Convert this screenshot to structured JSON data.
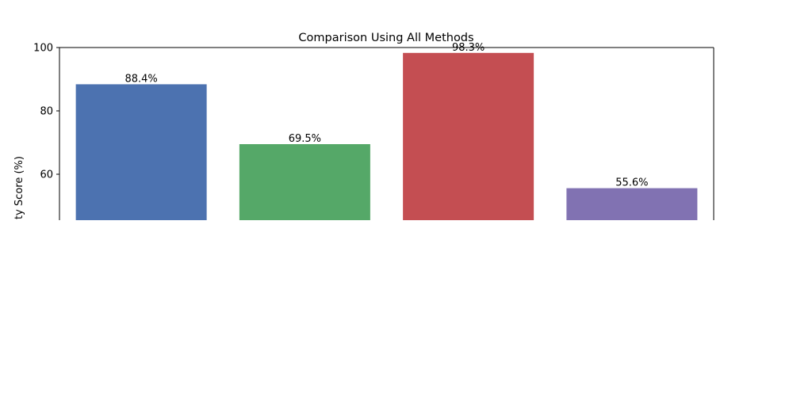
{
  "chart_data": {
    "type": "bar",
    "title": "Comparison Using All Methods",
    "ylabel": "ty Score (%)",
    "xlabel": "",
    "ylim": [
      45.5,
      100
    ],
    "yticks": [
      60,
      80,
      100
    ],
    "grid": false,
    "series": [
      {
        "values": [
          88.4,
          69.5,
          98.3,
          55.6
        ],
        "labels": [
          "88.4%",
          "69.5%",
          "98.3%",
          "55.6%"
        ],
        "colors": [
          "#4c72b0",
          "#55a868",
          "#c44e52",
          "#8172b2"
        ]
      }
    ]
  }
}
